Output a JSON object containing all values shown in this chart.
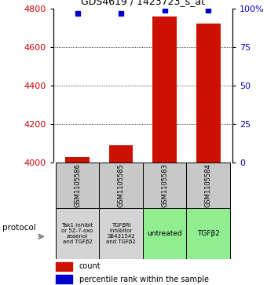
{
  "title": "GDS4619 / 1423723_s_at",
  "samples": [
    "GSM1105586",
    "GSM1105585",
    "GSM1105583",
    "GSM1105584"
  ],
  "counts": [
    4030,
    4090,
    4760,
    4720
  ],
  "percentiles": [
    97,
    97,
    99,
    99
  ],
  "protocols": [
    "Tak1 inhibit\nor 5Z-7-oxo\nzeaenol\nand TGFβ2",
    "TGFβRI\ninhibitor\nSB431542\nand TGFβ2",
    "untreated",
    "TGFβ2"
  ],
  "protocol_colors": [
    "#d4d4d4",
    "#d4d4d4",
    "#90ee90",
    "#90ee90"
  ],
  "ylim_left": [
    4000,
    4800
  ],
  "ylim_right": [
    0,
    100
  ],
  "yticks_left": [
    4000,
    4200,
    4400,
    4600,
    4800
  ],
  "yticks_right": [
    0,
    25,
    50,
    75,
    100
  ],
  "yticklabels_right": [
    "0",
    "25",
    "50",
    "75",
    "100%"
  ],
  "grid_values": [
    4200,
    4400,
    4600
  ],
  "bar_color": "#cc1100",
  "dot_color": "#0000cc",
  "sample_box_color": "#c8c8c8",
  "left_label_color": "#cc0000",
  "right_label_color": "#0000bb"
}
